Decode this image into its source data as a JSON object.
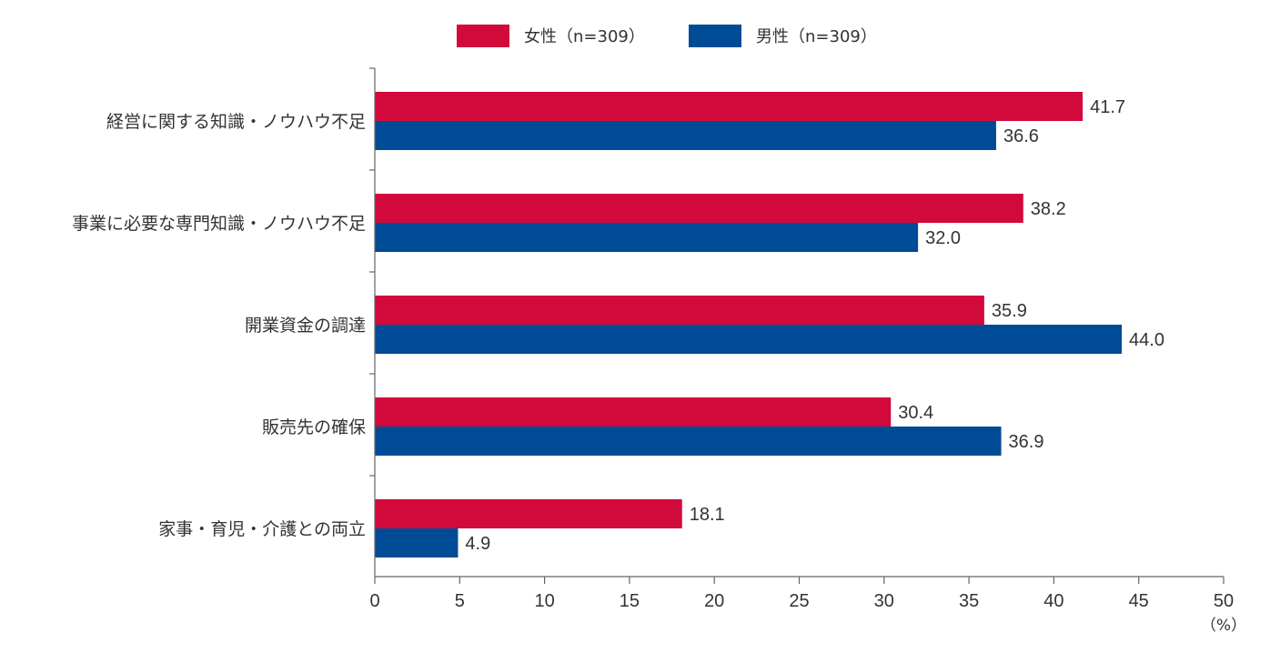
{
  "chart_data": {
    "type": "bar",
    "orientation": "horizontal",
    "categories": [
      "経営に関する知識・ノウハウ不足",
      "事業に必要な専門知識・ノウハウ不足",
      "開業資金の調達",
      "販売先の確保",
      "家事・育児・介護との両立"
    ],
    "series": [
      {
        "name": "女性（n=309）",
        "color": "#d2093b",
        "values": [
          41.7,
          38.2,
          35.9,
          30.4,
          18.1
        ]
      },
      {
        "name": "男性（n=309）",
        "color": "#004b95",
        "values": [
          36.6,
          32.0,
          44.0,
          36.9,
          4.9
        ]
      }
    ],
    "value_labels": [
      [
        "41.7",
        "38.2",
        "35.9",
        "30.4",
        "18.1"
      ],
      [
        "36.6",
        "32.0",
        "44.0",
        "36.9",
        "4.9"
      ]
    ],
    "xlim": [
      0,
      50
    ],
    "xticks": [
      "0",
      "5",
      "10",
      "15",
      "20",
      "25",
      "30",
      "35",
      "40",
      "45",
      "50"
    ],
    "unit": "（%）",
    "legend_position": "top-center",
    "grid": false
  }
}
